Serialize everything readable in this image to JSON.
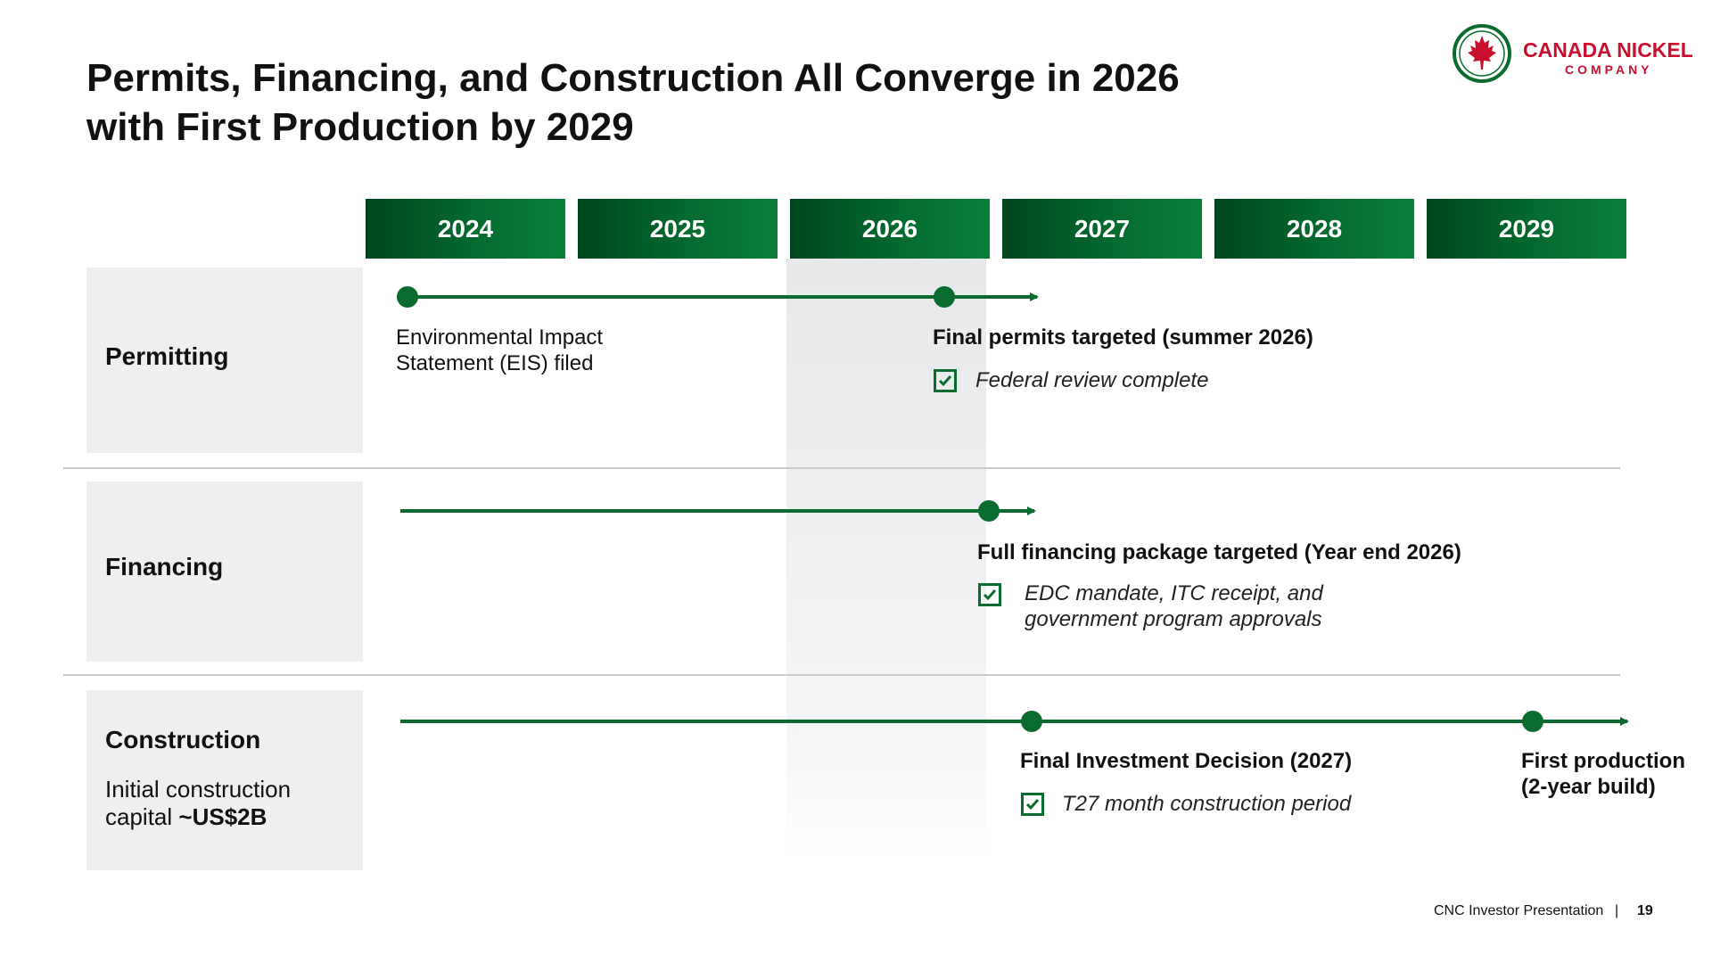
{
  "title": {
    "line1": "Permits, Financing, and Construction All Converge in 2026",
    "line2": "with First Production by 2029"
  },
  "logo": {
    "name": "CANADA NICKEL",
    "sub": "COMPANY",
    "icon": "maple-leaf-icon",
    "color": "#c8102e"
  },
  "years": [
    "2024",
    "2025",
    "2026",
    "2027",
    "2028",
    "2029"
  ],
  "highlight_year": "2026",
  "colors": {
    "header_green": "#036b2e",
    "line_green": "#0a6b2f",
    "dot_green": "#0a6b2f",
    "row_bg": "#efefef"
  },
  "rows": {
    "permitting": {
      "label": "Permitting",
      "eis_line1": "Environmental Impact",
      "eis_line2": "Statement (EIS) filed",
      "final_permits": "Final permits targeted (summer 2026)",
      "check_text": "Federal review complete"
    },
    "financing": {
      "label": "Financing",
      "package": "Full financing package targeted (Year end 2026)",
      "check_line1": "EDC mandate, ITC receipt, and",
      "check_line2": "government program approvals"
    },
    "construction": {
      "label": "Construction",
      "note_line1": "Initial construction",
      "note_line2_prefix": "capital ",
      "note_line2_bold": "~US$2B",
      "fid": "Final Investment Decision (2027)",
      "check_text": "T27 month construction period",
      "first_prod_line1": "First production",
      "first_prod_line2": "(2-year build)"
    }
  },
  "footer": {
    "text": "CNC Investor Presentation",
    "separator": "|",
    "page": "19"
  }
}
